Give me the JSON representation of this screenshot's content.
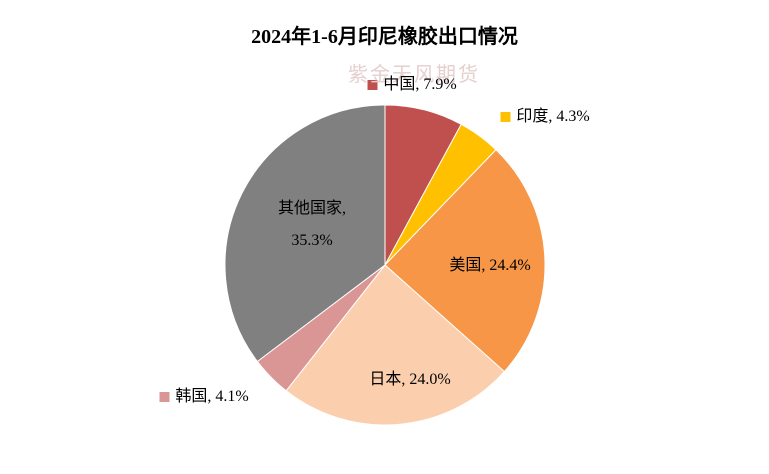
{
  "chart_data": {
    "type": "pie",
    "title": "2024年1-6月印尼橡胶出口情况",
    "watermark": "紫金天风期货",
    "values": [
      7.9,
      4.3,
      24.4,
      24.0,
      4.1,
      35.3
    ],
    "value_labels": [
      "中国, 7.9%",
      "印度, 4.3%",
      "美国, 24.4%",
      "日本, 24.0%",
      "韩国, 4.1%",
      "其他国家,\n35.3%"
    ],
    "colors": [
      "#c0504d",
      "#ffc000",
      "#f79646",
      "#fbcfae",
      "#d99694",
      "#808080"
    ]
  }
}
